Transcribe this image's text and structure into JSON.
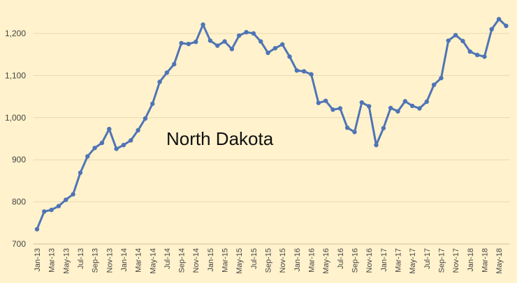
{
  "chart_data": {
    "type": "line",
    "annotation": "North Dakota",
    "categories": [
      "Jan-13",
      null,
      "Mar-13",
      null,
      "May-13",
      null,
      "Jul-13",
      null,
      "Sep-13",
      null,
      "Nov-13",
      null,
      "Jan-14",
      null,
      "Mar-14",
      null,
      "May-14",
      null,
      "Jul-14",
      null,
      "Sep-14",
      null,
      "Nov-14",
      null,
      "Jan-15",
      null,
      "Mar-15",
      null,
      "May-15",
      null,
      "Jul-15",
      null,
      "Sep-15",
      null,
      "Nov-15",
      null,
      "Jan-16",
      null,
      "Mar-16",
      null,
      "May-16",
      null,
      "Jul-16",
      null,
      "Sep-16",
      null,
      "Nov-16",
      null,
      "Jan-17",
      null,
      "Mar-17",
      null,
      "May-17",
      null,
      "Jul-17",
      null,
      "Sep-17",
      null,
      "Nov-17",
      null,
      "Jan-18",
      null,
      "Mar-18",
      null,
      "May-18",
      null
    ],
    "series": [
      {
        "color": "#4f74b6",
        "values": [
          735,
          777,
          781,
          790,
          805,
          818,
          869,
          908,
          928,
          940,
          973,
          926,
          935,
          946,
          970,
          998,
          1033,
          1085,
          1107,
          1127,
          1177,
          1175,
          1180,
          1221,
          1183,
          1171,
          1181,
          1163,
          1195,
          1203,
          1200,
          1181,
          1154,
          1165,
          1174,
          1145,
          1112,
          1110,
          1103,
          1035,
          1040,
          1019,
          1022,
          976,
          966,
          1036,
          1027,
          935,
          975,
          1023,
          1015,
          1039,
          1028,
          1022,
          1038,
          1078,
          1094,
          1183,
          1196,
          1182,
          1157,
          1149,
          1145,
          1210,
          1234,
          1218
        ]
      }
    ],
    "ylim": [
      700,
      1250
    ],
    "yticks": [
      700,
      800,
      900,
      {
        "value": 1000,
        "label": "1,000"
      },
      {
        "value": 1100,
        "label": "1,100"
      },
      {
        "value": 1200,
        "label": "1,200"
      }
    ],
    "grid": true,
    "background": "#fff2cc"
  }
}
